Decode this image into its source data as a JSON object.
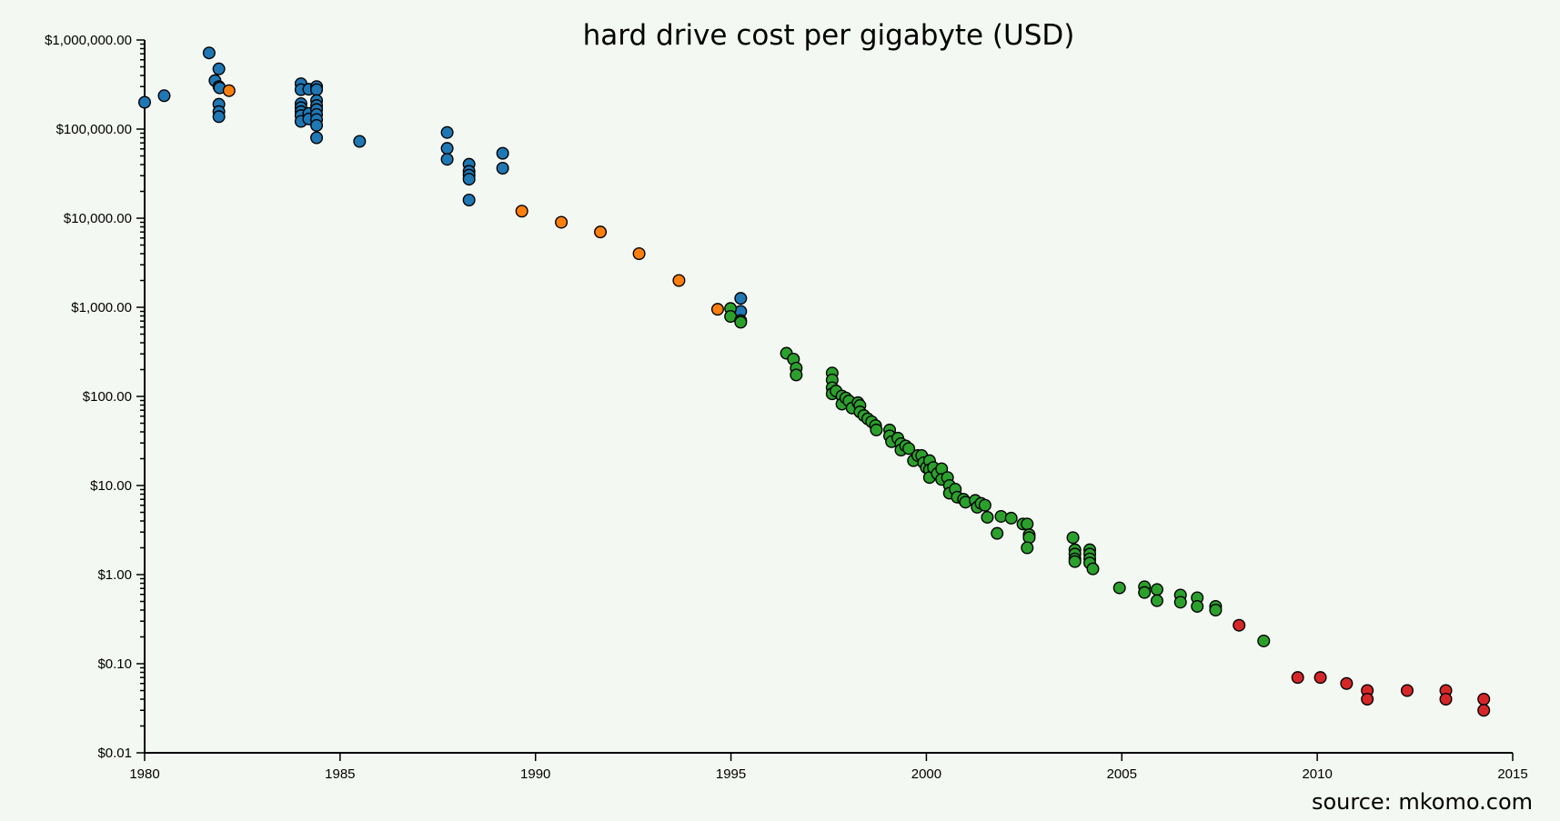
{
  "chart_data": {
    "type": "scatter",
    "title": "hard drive cost per gigabyte (USD)",
    "source": "source: mkomo.com",
    "xlabel": "",
    "ylabel": "",
    "xlim": [
      1980,
      2015
    ],
    "ylim": [
      0.01,
      1000000
    ],
    "y_scale": "log",
    "grid": false,
    "legend": "none",
    "x_ticks": [
      {
        "value": 1980,
        "label": "1980"
      },
      {
        "value": 1985,
        "label": "1985"
      },
      {
        "value": 1990,
        "label": "1990"
      },
      {
        "value": 1995,
        "label": "1995"
      },
      {
        "value": 2000,
        "label": "2000"
      },
      {
        "value": 2005,
        "label": "2005"
      },
      {
        "value": 2010,
        "label": "2010"
      },
      {
        "value": 2015,
        "label": "2015"
      }
    ],
    "y_ticks": [
      {
        "value": 1000000,
        "label": "$1,000,000.00"
      },
      {
        "value": 100000,
        "label": "$100,000.00"
      },
      {
        "value": 10000,
        "label": "$10,000.00"
      },
      {
        "value": 1000,
        "label": "$1,000.00"
      },
      {
        "value": 100,
        "label": "$100.00"
      },
      {
        "value": 10,
        "label": "$10.00"
      },
      {
        "value": 1,
        "label": "$1.00"
      },
      {
        "value": 0.1,
        "label": "$0.10"
      },
      {
        "value": 0.01,
        "label": "$0.01"
      }
    ],
    "series": [
      {
        "color": "#1f77b4",
        "points": [
          [
            1980.0,
            200000
          ],
          [
            1980.5,
            237000
          ],
          [
            1981.65,
            716000
          ],
          [
            1981.9,
            474000
          ],
          [
            1981.8,
            350000
          ],
          [
            1981.9,
            300000
          ],
          [
            1981.92,
            290000
          ],
          [
            1981.9,
            190000
          ],
          [
            1981.9,
            157000
          ],
          [
            1981.9,
            138000
          ],
          [
            1984.0,
            323000
          ],
          [
            1984.0,
            277000
          ],
          [
            1984.0,
            193000
          ],
          [
            1984.0,
            174000
          ],
          [
            1984.0,
            157000
          ],
          [
            1984.0,
            142000
          ],
          [
            1984.0,
            122000
          ],
          [
            1984.2,
            280000
          ],
          [
            1984.2,
            150000
          ],
          [
            1984.2,
            130000
          ],
          [
            1984.4,
            300000
          ],
          [
            1984.4,
            277000
          ],
          [
            1984.4,
            209000
          ],
          [
            1984.4,
            184000
          ],
          [
            1984.4,
            166000
          ],
          [
            1984.4,
            146000
          ],
          [
            1984.4,
            128000
          ],
          [
            1984.4,
            110000
          ],
          [
            1984.4,
            80000
          ],
          [
            1985.5,
            72800
          ],
          [
            1987.74,
            91600
          ],
          [
            1987.74,
            60800
          ],
          [
            1987.74,
            45800
          ],
          [
            1988.3,
            40300
          ],
          [
            1988.3,
            33600
          ],
          [
            1988.3,
            30400
          ],
          [
            1988.3,
            27400
          ],
          [
            1988.3,
            16000
          ],
          [
            1989.16,
            53500
          ],
          [
            1989.16,
            36400
          ],
          [
            1995.25,
            1260
          ],
          [
            1995.25,
            900
          ]
        ]
      },
      {
        "color": "#ff7f0e",
        "points": [
          [
            1982.16,
            270000
          ],
          [
            1989.65,
            12000
          ],
          [
            1990.66,
            9000
          ],
          [
            1991.66,
            7000
          ],
          [
            1992.65,
            4000
          ],
          [
            1993.67,
            2000
          ],
          [
            1994.66,
            950
          ]
        ]
      },
      {
        "color": "#2ca02c",
        "points": [
          [
            1994.99,
            970
          ],
          [
            1994.99,
            790
          ],
          [
            1995.25,
            710
          ],
          [
            1995.25,
            680
          ],
          [
            1996.42,
            305
          ],
          [
            1996.6,
            262
          ],
          [
            1996.67,
            208
          ],
          [
            1996.67,
            174
          ],
          [
            1997.59,
            183
          ],
          [
            1997.59,
            153
          ],
          [
            1997.59,
            125
          ],
          [
            1997.59,
            107
          ],
          [
            1997.69,
            115
          ],
          [
            1997.84,
            101
          ],
          [
            1997.84,
            82
          ],
          [
            1997.94,
            96
          ],
          [
            1998.02,
            89
          ],
          [
            1998.1,
            74
          ],
          [
            1998.25,
            85
          ],
          [
            1998.3,
            79
          ],
          [
            1998.3,
            67
          ],
          [
            1998.4,
            61
          ],
          [
            1998.5,
            56
          ],
          [
            1998.6,
            52
          ],
          [
            1998.7,
            47
          ],
          [
            1998.72,
            42
          ],
          [
            1999.06,
            42
          ],
          [
            1999.06,
            36
          ],
          [
            1999.11,
            31
          ],
          [
            1999.27,
            34
          ],
          [
            1999.35,
            29.5
          ],
          [
            1999.35,
            25
          ],
          [
            1999.47,
            27.8
          ],
          [
            1999.55,
            26
          ],
          [
            1999.67,
            19
          ],
          [
            1999.78,
            21.7
          ],
          [
            1999.88,
            21.7
          ],
          [
            1999.93,
            18
          ],
          [
            2000.0,
            15.9
          ],
          [
            2000.08,
            19
          ],
          [
            2000.08,
            15
          ],
          [
            2000.08,
            12.3
          ],
          [
            2000.18,
            15.9
          ],
          [
            2000.28,
            13.6
          ],
          [
            2000.39,
            15.4
          ],
          [
            2000.39,
            11.7
          ],
          [
            2000.54,
            12.3
          ],
          [
            2000.59,
            10
          ],
          [
            2000.59,
            8.2
          ],
          [
            2000.74,
            9.1
          ],
          [
            2000.79,
            7.4
          ],
          [
            2000.95,
            7.0
          ],
          [
            2001.0,
            6.5
          ],
          [
            2001.25,
            6.8
          ],
          [
            2001.3,
            5.7
          ],
          [
            2001.4,
            6.3
          ],
          [
            2001.5,
            6.0
          ],
          [
            2001.56,
            4.4
          ],
          [
            2001.81,
            2.9
          ],
          [
            2001.91,
            4.5
          ],
          [
            2002.17,
            4.3
          ],
          [
            2002.47,
            3.7
          ],
          [
            2002.58,
            3.7
          ],
          [
            2002.63,
            2.8
          ],
          [
            2002.63,
            2.6
          ],
          [
            2002.58,
            2.0
          ],
          [
            2003.75,
            2.6
          ],
          [
            2003.8,
            1.9
          ],
          [
            2003.8,
            1.7
          ],
          [
            2003.8,
            1.5
          ],
          [
            2003.8,
            1.4
          ],
          [
            2004.18,
            1.9
          ],
          [
            2004.18,
            1.7
          ],
          [
            2004.18,
            1.5
          ],
          [
            2004.18,
            1.35
          ],
          [
            2004.26,
            1.16
          ],
          [
            2004.94,
            0.71
          ],
          [
            2005.58,
            0.73
          ],
          [
            2005.58,
            0.63
          ],
          [
            2005.9,
            0.68
          ],
          [
            2005.9,
            0.51
          ],
          [
            2006.5,
            0.59
          ],
          [
            2006.5,
            0.49
          ],
          [
            2006.93,
            0.55
          ],
          [
            2006.93,
            0.44
          ],
          [
            2007.4,
            0.44
          ],
          [
            2007.4,
            0.4
          ],
          [
            2008.63,
            0.18
          ]
        ]
      },
      {
        "color": "#d62728",
        "points": [
          [
            2008.0,
            0.27
          ],
          [
            2009.5,
            0.07
          ],
          [
            2010.08,
            0.07
          ],
          [
            2010.75,
            0.06
          ],
          [
            2011.28,
            0.05
          ],
          [
            2011.28,
            0.04
          ],
          [
            2012.3,
            0.05
          ],
          [
            2013.29,
            0.05
          ],
          [
            2013.29,
            0.04
          ],
          [
            2014.26,
            0.04
          ],
          [
            2014.26,
            0.03
          ]
        ]
      }
    ]
  }
}
